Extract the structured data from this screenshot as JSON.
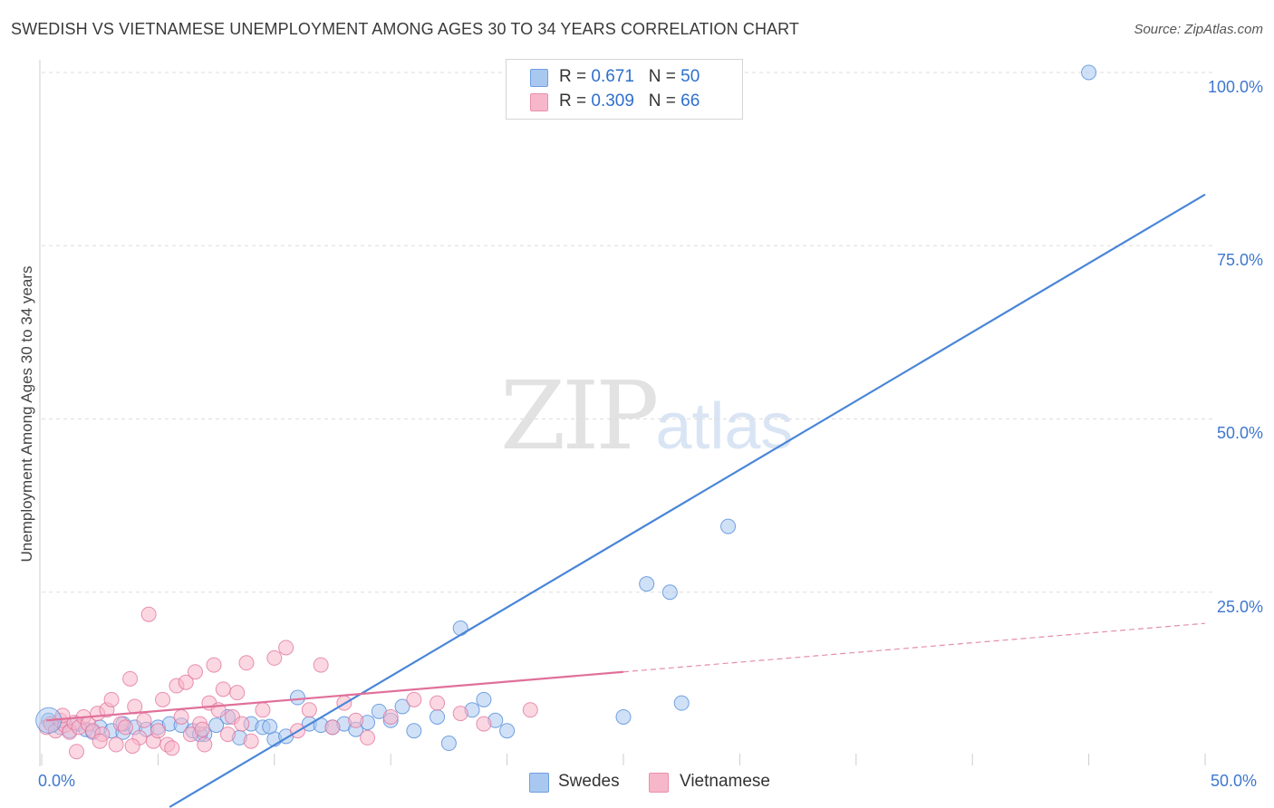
{
  "header": {
    "title": "SWEDISH VS VIETNAMESE UNEMPLOYMENT AMONG AGES 30 TO 34 YEARS CORRELATION CHART",
    "source": "Source: ZipAtlas.com"
  },
  "watermark": {
    "zip": "ZIP",
    "atlas": "atlas"
  },
  "legend": {
    "rows": [
      {
        "r_label": "R =",
        "r_value": "0.671",
        "n_label": "N =",
        "n_value": "50",
        "color": "#a9c8f0"
      },
      {
        "r_label": "R =",
        "r_value": "0.309",
        "n_label": "N =",
        "n_value": "66",
        "color": "#f7b7ca"
      }
    ],
    "bottom": [
      {
        "label": "Swedes",
        "color": "#a9c8f0"
      },
      {
        "label": "Vietnamese",
        "color": "#f7b7ca"
      }
    ]
  },
  "axes": {
    "ylabel": "Unemployment Among Ages 30 to 34 years",
    "y_ticks": [
      "100.0%",
      "75.0%",
      "50.0%",
      "25.0%"
    ],
    "x_ticks": [
      "0.0%",
      "50.0%"
    ]
  },
  "chart_data": {
    "type": "scatter",
    "title": "SWEDISH VS VIETNAMESE UNEMPLOYMENT AMONG AGES 30 TO 34 YEARS CORRELATION CHART",
    "xlabel": "",
    "ylabel": "Unemployment Among Ages 30 to 34 years",
    "xlim": [
      0,
      50
    ],
    "ylim": [
      0,
      100
    ],
    "grid": true,
    "legend_position": "top-center",
    "series": [
      {
        "name": "Swedes",
        "color": "#4a86d8",
        "fill": "#a9c8f0",
        "trend": {
          "x": [
            5.5,
            50
          ],
          "y": [
            -6,
            82.4
          ]
        },
        "points": [
          [
            0.3,
            6.5
          ],
          [
            0.8,
            5.5
          ],
          [
            1.2,
            5.0
          ],
          [
            1.5,
            6.0
          ],
          [
            1.9,
            5.2
          ],
          [
            2.5,
            5.5
          ],
          [
            3.0,
            5.0
          ],
          [
            3.5,
            4.8
          ],
          [
            4.0,
            5.5
          ],
          [
            4.5,
            5.2
          ],
          [
            5.0,
            5.5
          ],
          [
            5.5,
            6.0
          ],
          [
            6.0,
            5.8
          ],
          [
            6.5,
            5.0
          ],
          [
            7.0,
            4.5
          ],
          [
            7.5,
            5.8
          ],
          [
            8.0,
            7.0
          ],
          [
            8.5,
            4.0
          ],
          [
            9.0,
            6.0
          ],
          [
            9.5,
            5.5
          ],
          [
            10.0,
            3.8
          ],
          [
            10.5,
            4.2
          ],
          [
            11.0,
            9.8
          ],
          [
            11.5,
            6.0
          ],
          [
            12.0,
            5.8
          ],
          [
            12.5,
            5.5
          ],
          [
            13.0,
            6.0
          ],
          [
            13.5,
            5.2
          ],
          [
            14.0,
            6.2
          ],
          [
            14.5,
            7.8
          ],
          [
            15.0,
            6.5
          ],
          [
            15.5,
            8.5
          ],
          [
            16.0,
            5.0
          ],
          [
            17.0,
            7.0
          ],
          [
            17.5,
            3.2
          ],
          [
            18.0,
            19.8
          ],
          [
            18.5,
            8.0
          ],
          [
            19.0,
            9.5
          ],
          [
            19.5,
            6.5
          ],
          [
            20.0,
            5.0
          ],
          [
            25.0,
            7.0
          ],
          [
            26.0,
            26.2
          ],
          [
            27.5,
            9.0
          ],
          [
            27.0,
            25.0
          ],
          [
            29.5,
            34.5
          ],
          [
            45.0,
            100.0
          ],
          [
            3.5,
            6.0
          ],
          [
            6.8,
            4.5
          ],
          [
            2.2,
            4.8
          ],
          [
            9.8,
            5.6
          ]
        ]
      },
      {
        "name": "Vietnamese",
        "color": "#e07099",
        "fill": "#f7b7ca",
        "trend": {
          "x": [
            0.2,
            25
          ],
          "y": [
            6.5,
            13.5
          ]
        },
        "trend_ext": {
          "x": [
            25,
            50
          ],
          "y": [
            13.5,
            20.5
          ]
        },
        "points": [
          [
            0.2,
            5.5
          ],
          [
            0.4,
            6.0
          ],
          [
            0.6,
            5.0
          ],
          [
            0.8,
            6.5
          ],
          [
            1.0,
            5.8
          ],
          [
            1.2,
            4.8
          ],
          [
            1.4,
            6.2
          ],
          [
            1.6,
            5.5
          ],
          [
            1.8,
            7.0
          ],
          [
            2.0,
            6.0
          ],
          [
            2.2,
            5.0
          ],
          [
            2.4,
            7.5
          ],
          [
            2.6,
            4.5
          ],
          [
            2.8,
            8.0
          ],
          [
            3.0,
            9.5
          ],
          [
            3.2,
            3.0
          ],
          [
            3.4,
            6.0
          ],
          [
            3.6,
            5.5
          ],
          [
            3.8,
            12.5
          ],
          [
            4.0,
            8.5
          ],
          [
            4.2,
            4.0
          ],
          [
            4.4,
            6.5
          ],
          [
            4.6,
            21.8
          ],
          [
            4.8,
            3.5
          ],
          [
            5.0,
            5.0
          ],
          [
            5.2,
            9.5
          ],
          [
            5.4,
            3.0
          ],
          [
            5.6,
            2.5
          ],
          [
            5.8,
            11.5
          ],
          [
            6.0,
            7.0
          ],
          [
            6.2,
            12.0
          ],
          [
            6.4,
            4.5
          ],
          [
            6.6,
            13.5
          ],
          [
            6.8,
            6.0
          ],
          [
            7.0,
            3.0
          ],
          [
            7.2,
            9.0
          ],
          [
            7.4,
            14.5
          ],
          [
            7.6,
            8.0
          ],
          [
            7.8,
            11.0
          ],
          [
            8.0,
            4.5
          ],
          [
            8.2,
            7.0
          ],
          [
            8.4,
            10.5
          ],
          [
            8.6,
            6.0
          ],
          [
            8.8,
            14.8
          ],
          [
            9.0,
            3.5
          ],
          [
            9.5,
            8.0
          ],
          [
            10.0,
            15.5
          ],
          [
            10.5,
            17.0
          ],
          [
            11.0,
            5.0
          ],
          [
            11.5,
            8.0
          ],
          [
            12.0,
            14.5
          ],
          [
            12.5,
            5.5
          ],
          [
            13.0,
            9.0
          ],
          [
            13.5,
            6.5
          ],
          [
            14.0,
            4.0
          ],
          [
            15.0,
            7.0
          ],
          [
            16.0,
            9.5
          ],
          [
            17.0,
            9.0
          ],
          [
            18.0,
            7.5
          ],
          [
            19.0,
            6.0
          ],
          [
            21.0,
            8.0
          ],
          [
            1.5,
            2.0
          ],
          [
            2.5,
            3.5
          ],
          [
            0.9,
            7.2
          ],
          [
            3.9,
            2.8
          ],
          [
            6.9,
            5.2
          ]
        ]
      }
    ]
  }
}
